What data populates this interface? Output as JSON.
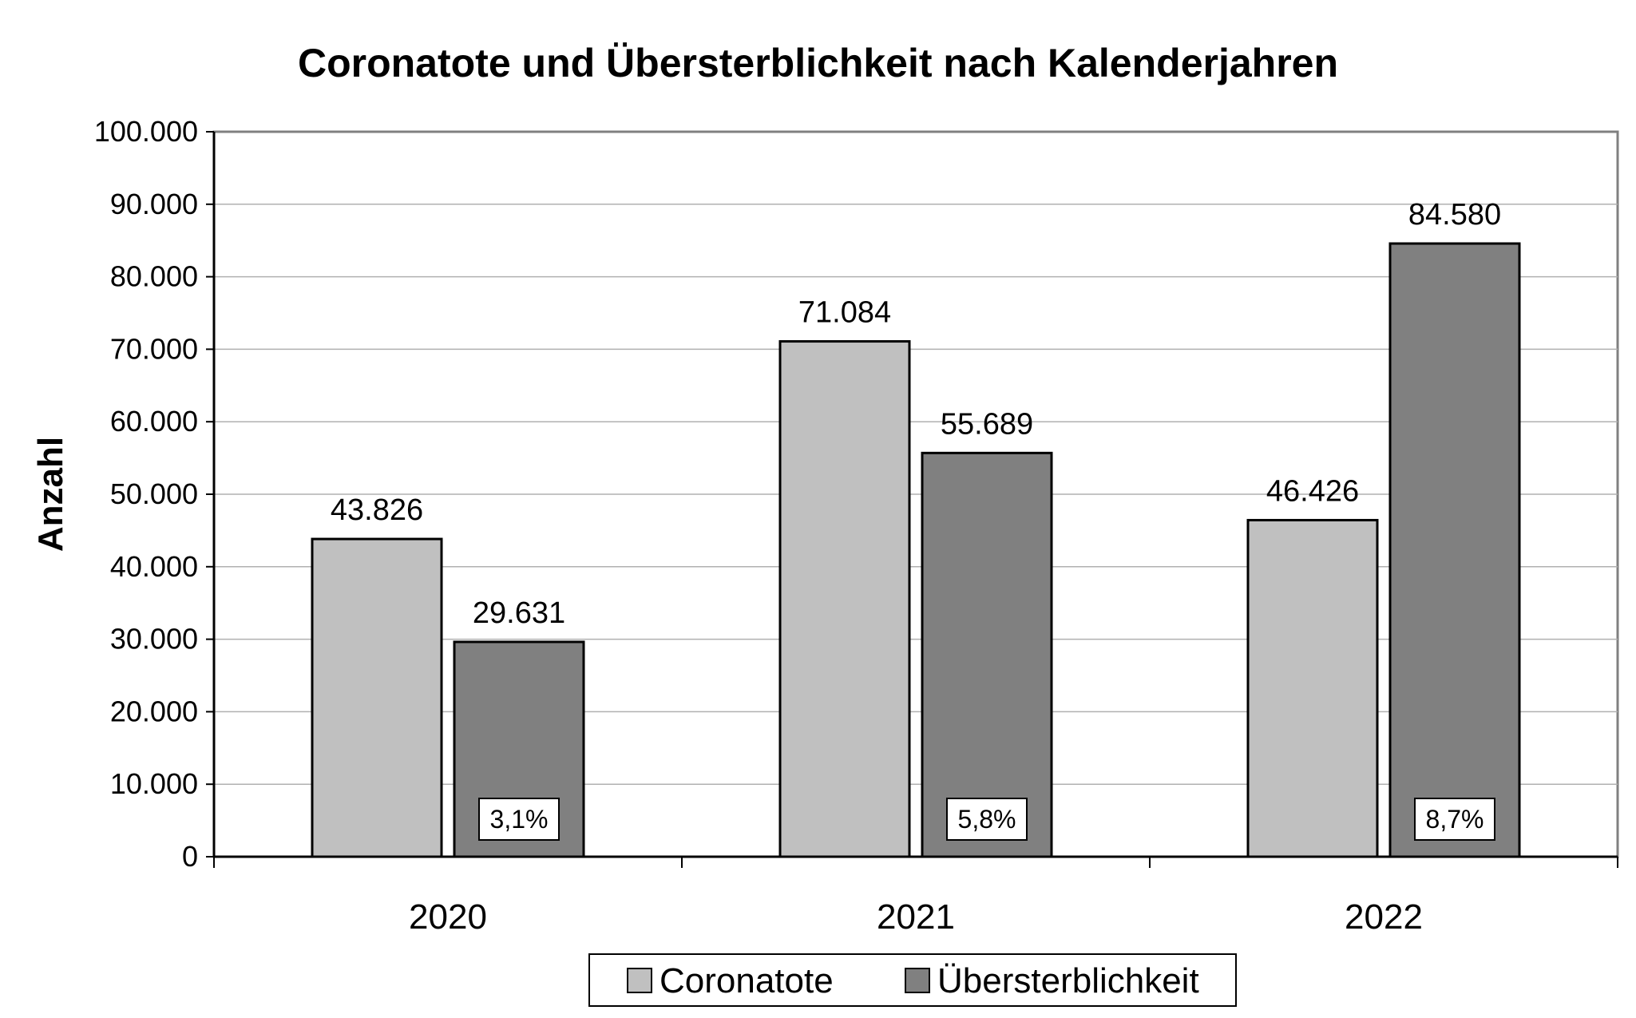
{
  "chart_data": {
    "type": "bar",
    "title": "Coronatote und Übersterblichkeit nach Kalenderjahren",
    "xlabel": "",
    "ylabel": "Anzahl",
    "ylim": [
      0,
      100000
    ],
    "yticks": [
      0,
      10000,
      20000,
      30000,
      40000,
      50000,
      60000,
      70000,
      80000,
      90000,
      100000
    ],
    "ytick_labels": [
      "0",
      "10.000",
      "20.000",
      "30.000",
      "40.000",
      "50.000",
      "60.000",
      "70.000",
      "80.000",
      "90.000",
      "100.000"
    ],
    "categories": [
      "2020",
      "2021",
      "2022"
    ],
    "series": [
      {
        "name": "Coronatote",
        "color": "#c0c0c0",
        "values": [
          43826,
          71084,
          46426
        ],
        "labels": [
          "43.826",
          "71.084",
          "46.426"
        ]
      },
      {
        "name": "Übersterblichkeit",
        "color": "#808080",
        "values": [
          29631,
          55689,
          84580
        ],
        "labels": [
          "29.631",
          "55.689",
          "84.580"
        ],
        "annotations": [
          "3,1%",
          "5,8%",
          "8,7%"
        ]
      }
    ],
    "grid": true,
    "legend_position": "bottom"
  }
}
